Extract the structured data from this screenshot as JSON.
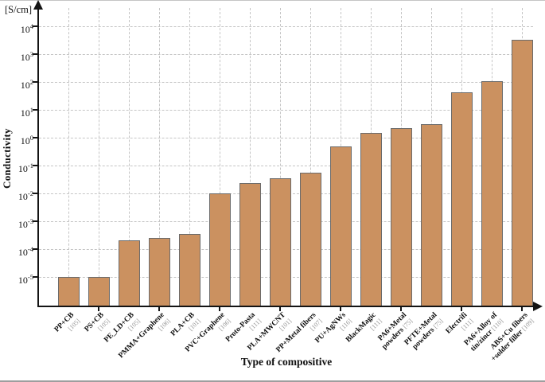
{
  "chart_data": {
    "type": "bar",
    "title": "",
    "y_unit_label": "[S/cm]",
    "ylabel": "Conductivity",
    "xlabel": "Type of compositive",
    "y_scale": "log",
    "y_tick_exponents": [
      4,
      3,
      2,
      1,
      0,
      -1,
      -2,
      -3,
      -4,
      -5
    ],
    "ylim": [
      1e-06,
      10000
    ],
    "grid": true,
    "legend": false,
    "bar_color": "#cb9160",
    "bar_border_color": "#6b6b6b",
    "gridline_color": "#c5c5c5",
    "axis_color": "#141414",
    "ref_color": "#969696",
    "categories": [
      "PP+CB",
      "PS+CB",
      "PE_LD+CB",
      "PMMA+Graphene",
      "PLA+CB",
      "PVC+Graphene",
      "Proto-Pasta",
      "PLA+MWCNT",
      "PP+Metal fibers",
      "PU+AgNWs",
      "BlackMagic",
      "PA6+Metal powders",
      "PFTE+Metal powders",
      "Electrifi",
      "PA6+Alloy of tin/zincr",
      "ABS+Cu fibers +solder filler"
    ],
    "refs": [
      "[105]",
      "[105]",
      "[105]",
      "[106]",
      "[101]",
      "[106]",
      "[111]",
      "[101]",
      "[107]",
      "[116]",
      "[111]",
      "[75]",
      "[75]",
      "[111]",
      "[110]",
      "[109]"
    ],
    "values": [
      1e-05,
      1e-05,
      0.0002,
      0.00025,
      0.00035,
      0.01,
      0.023,
      0.035,
      0.055,
      0.5,
      1.5,
      2.2,
      3,
      42,
      105,
      3200
    ],
    "label_lines": [
      [
        "PP+CB",
        "[105]"
      ],
      [
        "PS+CB",
        "[105]"
      ],
      [
        "PE_LD+CB",
        "[105]"
      ],
      [
        "PMMA+Graphene",
        "[106]"
      ],
      [
        "PLA+CB",
        "[101]"
      ],
      [
        "PVC+Graphene",
        "[106]"
      ],
      [
        "Proto-Pasta",
        "[111]"
      ],
      [
        "PLA+MWCNT",
        "[101]"
      ],
      [
        "PP+Metal fibers",
        "[107]"
      ],
      [
        "PU+AgNWs",
        "[116]"
      ],
      [
        "BlackMagic",
        "[111]"
      ],
      [
        "PA6+Metal",
        "powders [75]"
      ],
      [
        "PFTE+Metal",
        "powders [75]"
      ],
      [
        "Electrifi",
        "[111]"
      ],
      [
        "PA6+Alloy of",
        "tin/zincr [110]"
      ],
      [
        "ABS+Cu fibers",
        "+solder filler [109]"
      ]
    ]
  }
}
